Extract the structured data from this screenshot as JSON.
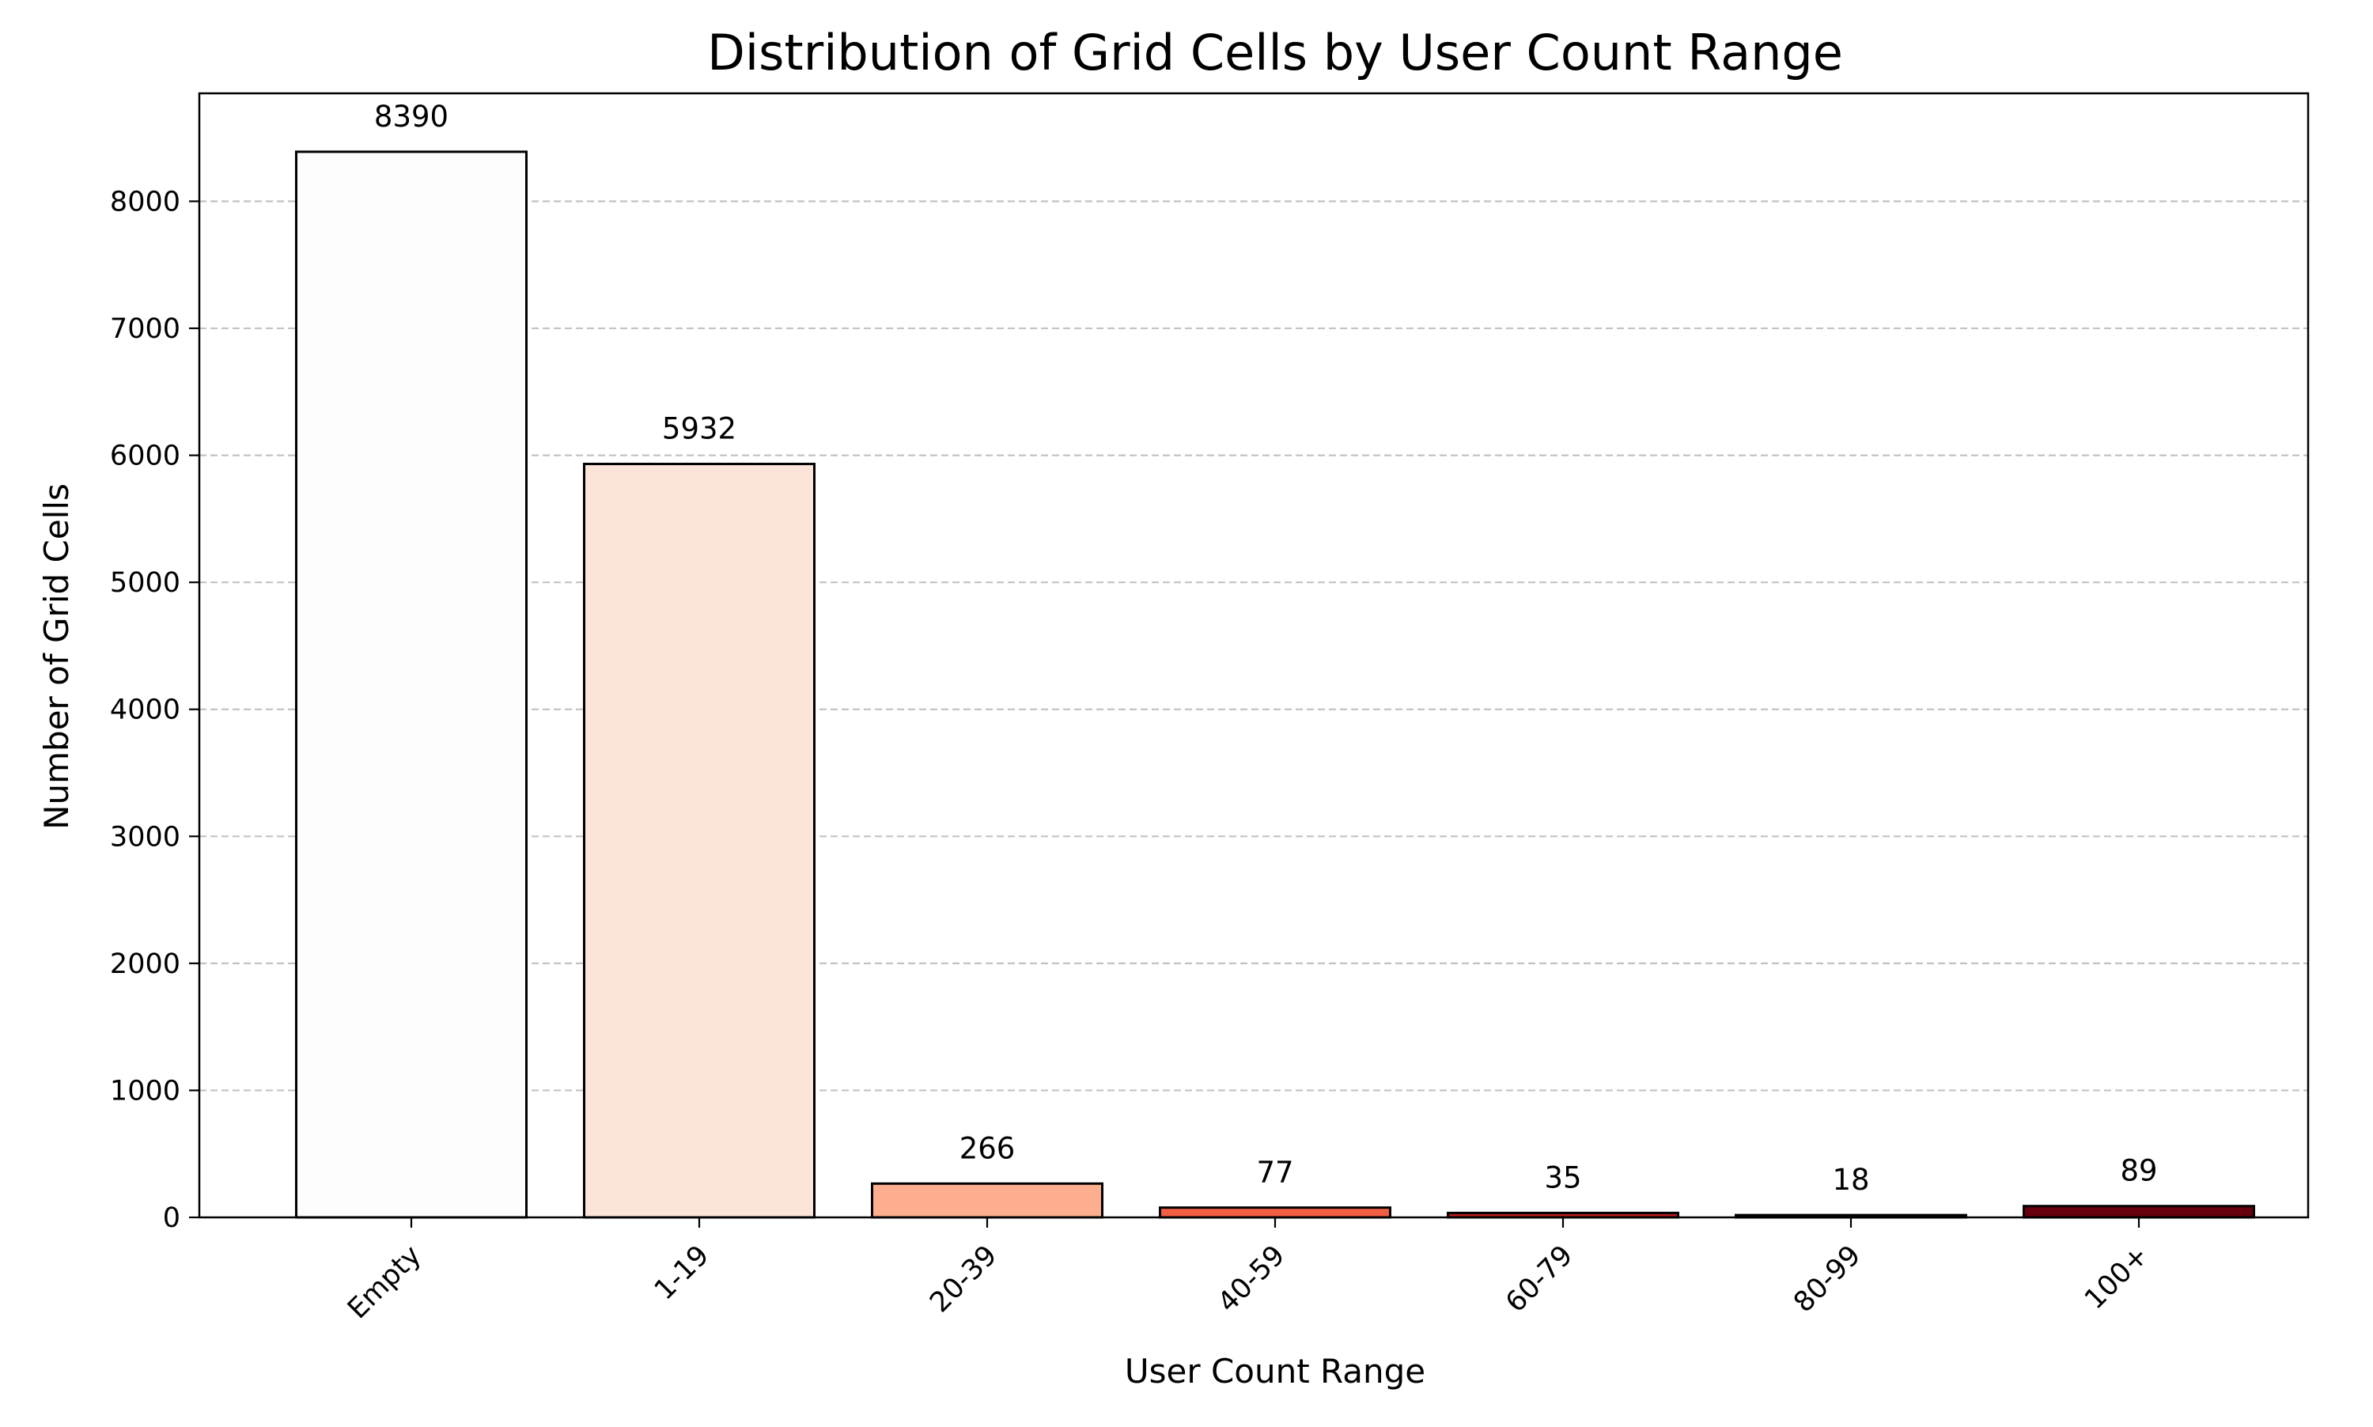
{
  "chart_data": {
    "type": "bar",
    "title": "Distribution of Grid Cells by User Count Range",
    "xlabel": "User Count Range",
    "ylabel": "Number of Grid Cells",
    "categories": [
      "Empty",
      "1-19",
      "20-39",
      "40-59",
      "60-79",
      "80-99",
      "100+"
    ],
    "values": [
      8390,
      5932,
      266,
      77,
      35,
      18,
      89
    ],
    "bar_colors": [
      "#fdfdfd",
      "#fce4d9",
      "#fcae8f",
      "#f05e44",
      "#bb1a1e",
      "#8a0c13",
      "#67000d"
    ],
    "ylim": [
      0,
      8850
    ],
    "yticks": [
      0,
      1000,
      2000,
      3000,
      4000,
      5000,
      6000,
      7000,
      8000
    ],
    "ytick_labels": [
      "0",
      "1000",
      "2000",
      "3000",
      "4000",
      "5000",
      "6000",
      "7000",
      "8000"
    ],
    "grid": "y-dashed",
    "legend": "none",
    "data_labels": [
      "8390",
      "5932",
      "266",
      "77",
      "35",
      "18",
      "89"
    ]
  }
}
